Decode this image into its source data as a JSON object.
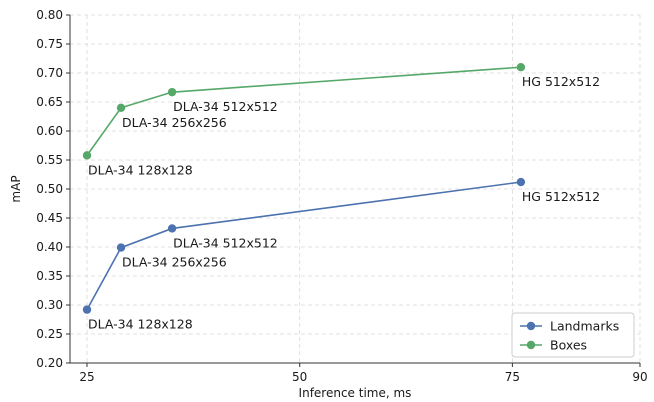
{
  "chart_data": {
    "type": "line",
    "xlabel": "Inference time, ms",
    "ylabel": "mAP",
    "xlim": [
      23,
      90
    ],
    "ylim": [
      0.2,
      0.8
    ],
    "xticks": [
      "25",
      "50",
      "75",
      "90"
    ],
    "xtick_values": [
      25,
      50,
      75,
      90
    ],
    "yticks": [
      "0.20",
      "0.25",
      "0.30",
      "0.35",
      "0.40",
      "0.45",
      "0.50",
      "0.55",
      "0.60",
      "0.65",
      "0.70",
      "0.75",
      "0.80"
    ],
    "ytick_values": [
      0.2,
      0.25,
      0.3,
      0.35,
      0.4,
      0.45,
      0.5,
      0.55,
      0.6,
      0.65,
      0.7,
      0.75,
      0.8
    ],
    "grid": true,
    "legend_position": "bottom-right",
    "series": [
      {
        "name": "Landmarks",
        "color": "#4c72b0",
        "x": [
          25,
          29,
          35,
          76
        ],
        "y": [
          0.292,
          0.399,
          0.432,
          0.512
        ],
        "labels": [
          "DLA-34 128x128",
          "DLA-34 256x256",
          "DLA-34 512x512",
          "HG 512x512"
        ]
      },
      {
        "name": "Boxes",
        "color": "#55a868",
        "x": [
          25,
          29,
          35,
          76
        ],
        "y": [
          0.558,
          0.64,
          0.667,
          0.71
        ],
        "labels": [
          "DLA-34 128x128",
          "DLA-34 256x256",
          "DLA-34 512x512",
          "HG 512x512"
        ]
      }
    ]
  }
}
